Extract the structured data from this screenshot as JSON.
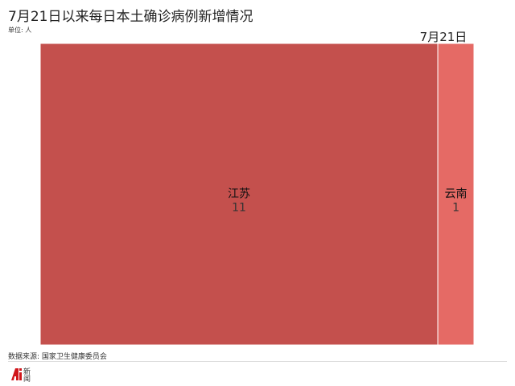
{
  "title": "7月21日以来每日本土确诊病例新增情况",
  "unit": "单位: 人",
  "source": "数据来源: 国家卫生健康委员会",
  "logo_text": "Ai新闻",
  "chart_data": {
    "type": "treemap",
    "group": "7月21日",
    "items": [
      {
        "name": "江苏",
        "value": 11,
        "color": "#c4504d"
      },
      {
        "name": "云南",
        "value": 1,
        "color": "#e56a65"
      }
    ]
  }
}
